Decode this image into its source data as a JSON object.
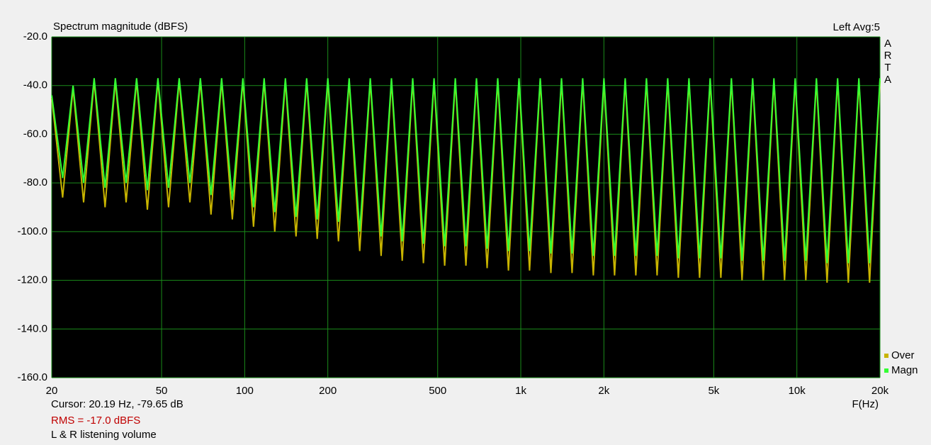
{
  "chart_data": {
    "type": "line",
    "title": "Spectrum magnitude (dBFS)",
    "channel_info": "Left  Avg:5",
    "brand": "ARTA",
    "x_label": "F(Hz)",
    "cursor_text": "Cursor: 20.19 Hz, -79.65 dB",
    "rms_text": "RMS =  -17.0 dBFS",
    "note": "L & R listening volume",
    "log_x": true,
    "grid": true,
    "legend_position": "lower right",
    "xlim": [
      20,
      20000
    ],
    "ylim": [
      -160,
      -20
    ],
    "xticks": [
      20,
      50,
      100,
      200,
      500,
      {
        "value": 1000,
        "label": "1k"
      },
      {
        "value": 2000,
        "label": "2k"
      },
      {
        "value": 5000,
        "label": "5k"
      },
      {
        "value": 10000,
        "label": "10k"
      },
      {
        "value": 20000,
        "label": "20k"
      }
    ],
    "yticks": [
      {
        "value": -20,
        "label": "-20.0"
      },
      {
        "value": -40,
        "label": "-40.0"
      },
      {
        "value": -60,
        "label": "-60.0"
      },
      {
        "value": -80,
        "label": "-80.0"
      },
      {
        "value": -100,
        "label": "-100.0"
      },
      {
        "value": -120,
        "label": "-120.0"
      },
      {
        "value": -140,
        "label": "-140.0"
      },
      {
        "value": -160,
        "label": "-160.0"
      }
    ],
    "x": [
      20,
      21.9,
      23.9,
      26.1,
      28.5,
      31.2,
      34,
      37.2,
      40.6,
      44.4,
      48.5,
      53,
      57.9,
      63.3,
      69.1,
      75.5,
      82.5,
      90.2,
      98.5,
      107.6,
      117.6,
      128.5,
      140.4,
      153.4,
      167.6,
      183.1,
      200,
      218.6,
      239,
      261,
      285,
      312,
      340,
      372,
      406,
      444,
      485,
      530,
      579,
      633,
      691,
      755,
      825,
      902,
      985,
      1076,
      1176,
      1285,
      1404,
      1534,
      1676,
      1831,
      2001,
      2186,
      2389,
      2610,
      2852,
      3116,
      3405,
      3721,
      4065,
      4442,
      4853,
      5303,
      5794,
      6331,
      6917,
      7558,
      8258,
      9023,
      9858,
      10773,
      11770,
      12861,
      14050,
      15354,
      16774,
      18331,
      20000
    ],
    "series": [
      {
        "name": "Over",
        "color": "#c8b400",
        "values": [
          -45,
          -86,
          -41,
          -88,
          -38,
          -90,
          -38,
          -88,
          -38,
          -91,
          -38,
          -90,
          -38,
          -88,
          -38,
          -93,
          -38,
          -95,
          -38,
          -98,
          -38,
          -100,
          -38,
          -102,
          -38,
          -103,
          -38,
          -104,
          -38,
          -108,
          -38,
          -110,
          -38,
          -112,
          -38,
          -113,
          -38,
          -114,
          -38,
          -114,
          -38,
          -115,
          -38,
          -116,
          -38,
          -116,
          -38,
          -117,
          -38,
          -117,
          -38,
          -118,
          -38,
          -118,
          -38,
          -118,
          -38,
          -118,
          -38,
          -119,
          -38,
          -119,
          -38,
          -119,
          -38,
          -120,
          -38,
          -120,
          -38,
          -120,
          -38,
          -120,
          -38,
          -121,
          -38,
          -121,
          -38,
          -121,
          -38
        ]
      },
      {
        "name": "Magn",
        "color": "#33ff33",
        "values": [
          -44,
          -78,
          -40,
          -80,
          -37,
          -82,
          -37,
          -80,
          -37,
          -83,
          -37,
          -82,
          -37,
          -80,
          -37,
          -85,
          -37,
          -87,
          -37,
          -90,
          -37,
          -92,
          -37,
          -94,
          -37,
          -95,
          -37,
          -96,
          -37,
          -100,
          -37,
          -102,
          -37,
          -104,
          -37,
          -105,
          -37,
          -106,
          -37,
          -106,
          -37,
          -107,
          -37,
          -108,
          -37,
          -108,
          -37,
          -109,
          -37,
          -109,
          -37,
          -110,
          -37,
          -110,
          -37,
          -110,
          -37,
          -110,
          -37,
          -111,
          -37,
          -111,
          -37,
          -111,
          -37,
          -112,
          -37,
          -112,
          -37,
          -112,
          -37,
          -112,
          -37,
          -113,
          -37,
          -113,
          -37,
          -113,
          -37
        ]
      }
    ]
  }
}
